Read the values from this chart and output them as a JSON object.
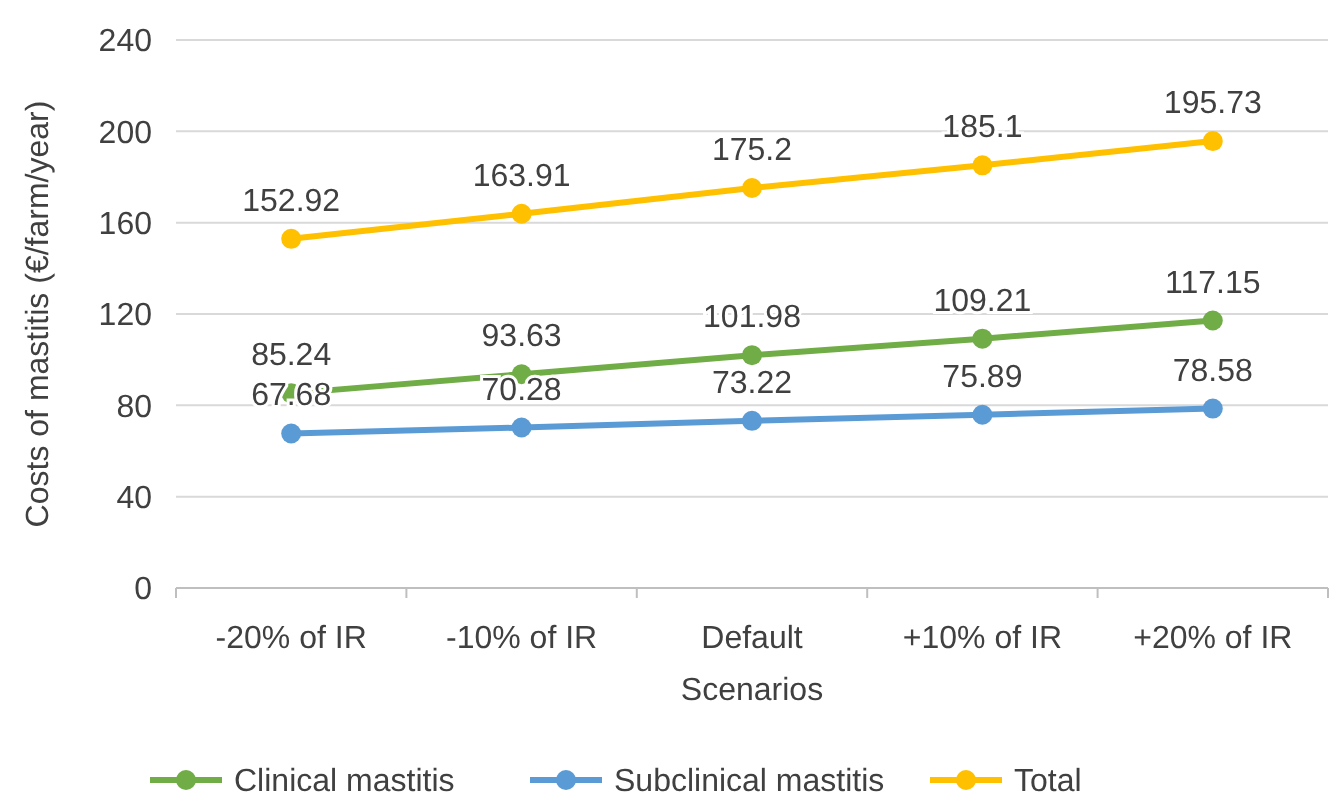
{
  "chart_data": {
    "type": "line",
    "ylabel": "Costs of mastitis (€/farm/year)",
    "xlabel": "Scenarios",
    "categories": [
      "-20% of IR",
      "-10% of IR",
      "Default",
      "+10% of IR",
      "+20% of IR"
    ],
    "series": [
      {
        "name": "Clinical mastitis",
        "color": "#70ad47",
        "values": [
          85.24,
          93.63,
          101.98,
          109.21,
          117.15
        ]
      },
      {
        "name": "Subclinical mastitis",
        "color": "#5b9bd5",
        "values": [
          67.68,
          70.28,
          73.22,
          75.89,
          78.58
        ]
      },
      {
        "name": "Total",
        "color": "#ffc000",
        "values": [
          152.92,
          163.91,
          175.2,
          185.1,
          195.73
        ]
      }
    ],
    "ylim": [
      0,
      240
    ],
    "yticks": [
      0,
      40,
      80,
      120,
      160,
      200,
      240
    ],
    "grid": "y",
    "legend": "bottom",
    "data_labels": true,
    "marker": "circle",
    "line_style": "solid"
  }
}
